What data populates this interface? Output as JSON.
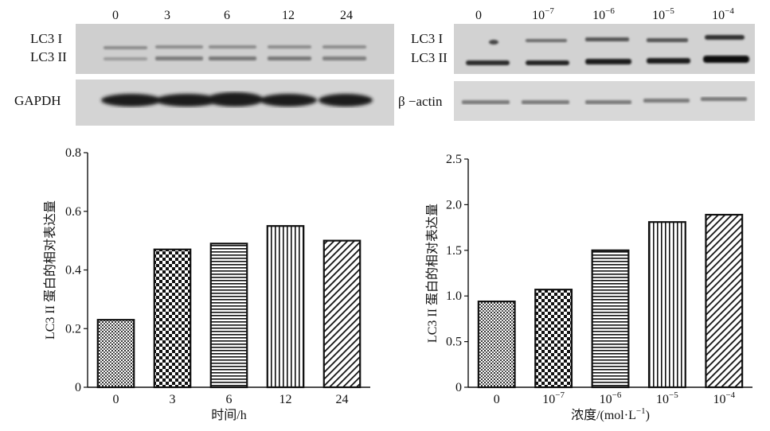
{
  "panels": [
    {
      "lanes": [
        "0",
        "3",
        "6",
        "12",
        "24"
      ],
      "blot_top_labels": [
        "LC3 I",
        "LC3 II"
      ],
      "blot_bottom_label": "GAPDH"
    },
    {
      "lanes": [
        {
          "base": "0",
          "exp": ""
        },
        {
          "base": "10",
          "exp": "−7"
        },
        {
          "base": "10",
          "exp": "−6"
        },
        {
          "base": "10",
          "exp": "−5"
        },
        {
          "base": "10",
          "exp": "−4"
        }
      ],
      "blot_top_labels": [
        "LC3 I",
        "LC3 II"
      ],
      "blot_bottom_label": "β −actin"
    }
  ],
  "chart_data": [
    {
      "type": "bar",
      "categories": [
        "0",
        "3",
        "6",
        "12",
        "24"
      ],
      "values": [
        0.23,
        0.47,
        0.49,
        0.55,
        0.5
      ],
      "xlabel": "时间/h",
      "ylabel": "LC3 II 蛋白的相对表达量",
      "ylim": [
        0,
        0.8
      ],
      "yticks": [
        "0",
        "0.2",
        "0.4",
        "0.6",
        "0.8"
      ],
      "patterns": [
        "dots",
        "checker",
        "hlines",
        "vlines",
        "diagonal"
      ],
      "grid": false
    },
    {
      "type": "bar",
      "categories": [
        {
          "base": "0",
          "exp": ""
        },
        {
          "base": "10",
          "exp": "−7"
        },
        {
          "base": "10",
          "exp": "−6"
        },
        {
          "base": "10",
          "exp": "−5"
        },
        {
          "base": "10",
          "exp": "−4"
        }
      ],
      "values": [
        0.94,
        1.07,
        1.5,
        1.81,
        1.89
      ],
      "xlabel": {
        "base": "浓度/(mol·L",
        "exp": "−1",
        "tail": ")"
      },
      "ylabel": "LC3 II 蛋白的相对表达量",
      "ylim": [
        0,
        2.5
      ],
      "yticks": [
        "0",
        "0.5",
        "1.0",
        "1.5",
        "2.0",
        "2.5"
      ],
      "patterns": [
        "dots",
        "checker",
        "hlines",
        "vlines",
        "diagonal"
      ],
      "grid": false
    }
  ]
}
